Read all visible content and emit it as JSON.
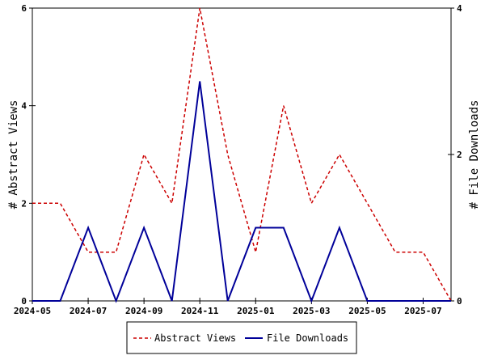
{
  "chart_data": {
    "type": "line",
    "x": [
      "2024-05",
      "2024-06",
      "2024-07",
      "2024-08",
      "2024-09",
      "2024-10",
      "2024-11",
      "2024-12",
      "2025-01",
      "2025-02",
      "2025-03",
      "2025-04",
      "2025-05",
      "2025-06",
      "2025-07",
      "2025-08"
    ],
    "x_ticks": [
      "2024-05",
      "2024-07",
      "2024-09",
      "2024-11",
      "2025-01",
      "2025-03",
      "2025-05",
      "2025-07"
    ],
    "ylabel_left": "# Abstract Views",
    "ylabel_right": "# File Downloads",
    "ylim_left": [
      0,
      6
    ],
    "ylim_right": [
      0,
      4
    ],
    "yticks_left": [
      "0",
      "2",
      "4",
      "6"
    ],
    "yticks_right": [
      "0",
      "2",
      "4"
    ],
    "grid": false,
    "legend_placement": "bottom-center",
    "series": [
      {
        "name": "Abstract Views",
        "axis": "left",
        "color": "#cc0000",
        "style": "dashed",
        "values": [
          2,
          2,
          1,
          1,
          3,
          2,
          6,
          3,
          1,
          4,
          2,
          3,
          2,
          1,
          1,
          0
        ]
      },
      {
        "name": "File Downloads",
        "axis": "right",
        "color": "#000099",
        "style": "solid",
        "values": [
          0,
          0,
          1,
          0,
          1,
          0,
          3,
          0,
          1,
          1,
          0,
          1,
          0,
          0,
          0,
          0
        ]
      }
    ]
  }
}
